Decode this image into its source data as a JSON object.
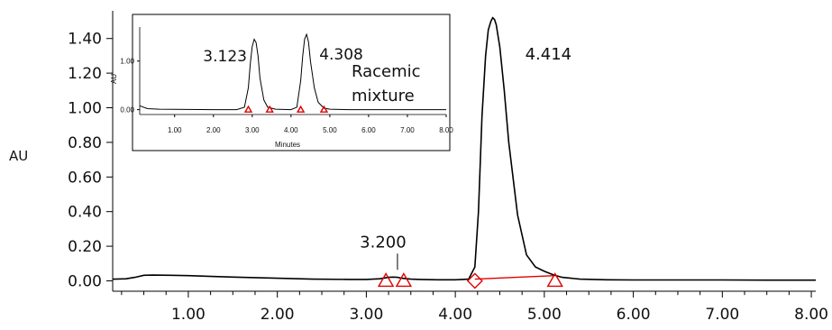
{
  "chart_data": [
    {
      "type": "line",
      "ylabel": "AU",
      "xlim": [
        0.15,
        8.05
      ],
      "ylim": [
        -0.06,
        1.56
      ],
      "xticks": [
        {
          "v": 1.0,
          "label": "1.00"
        },
        {
          "v": 2.0,
          "label": "2.00"
        },
        {
          "v": 3.0,
          "label": "3.00"
        },
        {
          "v": 4.0,
          "label": "4.00"
        },
        {
          "v": 5.0,
          "label": "5.00"
        },
        {
          "v": 6.0,
          "label": "6.00"
        },
        {
          "v": 7.0,
          "label": "7.00"
        },
        {
          "v": 8.0,
          "label": "8.00"
        }
      ],
      "yticks": [
        {
          "v": 0.0,
          "label": "0.00"
        },
        {
          "v": 0.2,
          "label": "0.20"
        },
        {
          "v": 0.4,
          "label": "0.40"
        },
        {
          "v": 0.6,
          "label": "0.60"
        },
        {
          "v": 0.8,
          "label": "0.80"
        },
        {
          "v": 1.0,
          "label": "1.00"
        },
        {
          "v": 1.2,
          "label": "1.20"
        },
        {
          "v": 1.4,
          "label": "1.40"
        }
      ],
      "series": [
        {
          "x": [
            0.15,
            0.3,
            0.4,
            0.5,
            0.6,
            0.8,
            1.0,
            1.3,
            1.6,
            2.0,
            2.4,
            2.8,
            3.0,
            3.15,
            3.25,
            3.3,
            3.35,
            3.4,
            3.5,
            3.6,
            3.8,
            4.0,
            4.15,
            4.22,
            4.26,
            4.3,
            4.34,
            4.37,
            4.4,
            4.42,
            4.44,
            4.46,
            4.5,
            4.55,
            4.6,
            4.7,
            4.8,
            4.9,
            5.0,
            5.1,
            5.2,
            5.4,
            5.7,
            6.0,
            6.5,
            7.0,
            7.5,
            8.05
          ],
          "y": [
            0.01,
            0.012,
            0.02,
            0.032,
            0.033,
            0.032,
            0.03,
            0.025,
            0.02,
            0.015,
            0.01,
            0.008,
            0.008,
            0.012,
            0.02,
            0.022,
            0.02,
            0.015,
            0.01,
            0.008,
            0.006,
            0.006,
            0.01,
            0.08,
            0.4,
            0.95,
            1.3,
            1.45,
            1.5,
            1.52,
            1.51,
            1.48,
            1.35,
            1.1,
            0.8,
            0.38,
            0.15,
            0.08,
            0.055,
            0.035,
            0.02,
            0.01,
            0.006,
            0.005,
            0.005,
            0.005,
            0.004,
            0.004
          ]
        }
      ],
      "peak_labels": [
        {
          "x": 3.35,
          "y": 0.022,
          "label": "3.200"
        },
        {
          "x": 4.42,
          "y": 1.52,
          "label": "4.414"
        }
      ],
      "baseline_markers": [
        {
          "x": 3.22,
          "y": 0.0,
          "shape": "triangle"
        },
        {
          "x": 3.42,
          "y": 0.0,
          "shape": "triangle"
        },
        {
          "x": 4.22,
          "y": 0.0,
          "shape": "diamond"
        },
        {
          "x": 5.12,
          "y": 0.0,
          "shape": "triangle"
        }
      ],
      "baseline_segments": [
        [
          4.22,
          0.01,
          5.12,
          0.03
        ]
      ]
    },
    {
      "type": "line",
      "inset": true,
      "xlabel": "Minutes",
      "ylabel": "AU",
      "xlim": [
        0.1,
        8.0
      ],
      "ylim": [
        -0.1,
        1.7
      ],
      "xticks": [
        {
          "v": 1.0,
          "label": "1.00"
        },
        {
          "v": 2.0,
          "label": "2.00"
        },
        {
          "v": 3.0,
          "label": "3.00"
        },
        {
          "v": 4.0,
          "label": "4.00"
        },
        {
          "v": 5.0,
          "label": "5.00"
        },
        {
          "v": 6.0,
          "label": "6.00"
        },
        {
          "v": 7.0,
          "label": "7.00"
        },
        {
          "v": 8.0,
          "label": "8.00"
        }
      ],
      "yticks": [
        {
          "v": 0.0,
          "label": "0.00"
        },
        {
          "v": 1.0,
          "label": "1.00"
        }
      ],
      "series": [
        {
          "x": [
            0.1,
            0.3,
            0.6,
            1.0,
            2.0,
            2.6,
            2.8,
            2.9,
            2.95,
            3.0,
            3.05,
            3.1,
            3.15,
            3.2,
            3.3,
            3.4,
            3.6,
            4.0,
            4.15,
            4.25,
            4.3,
            4.35,
            4.4,
            4.45,
            4.5,
            4.6,
            4.7,
            4.85,
            5.0,
            5.5,
            6.0,
            7.0,
            8.0
          ],
          "y": [
            0.08,
            0.02,
            0.01,
            0.005,
            0.0,
            0.0,
            0.05,
            0.45,
            0.95,
            1.3,
            1.45,
            1.38,
            1.1,
            0.65,
            0.2,
            0.05,
            0.01,
            0.0,
            0.05,
            0.6,
            1.1,
            1.45,
            1.55,
            1.4,
            1.0,
            0.45,
            0.15,
            0.03,
            0.01,
            0.0,
            0.0,
            0.0,
            0.0
          ]
        }
      ],
      "peak_labels": [
        {
          "x": 3.05,
          "label": "3.123"
        },
        {
          "x": 4.45,
          "label": "4.308"
        }
      ],
      "annotation": [
        "Racemic",
        "mixture"
      ],
      "baseline_markers": [
        {
          "x": 2.9,
          "y": 0.0,
          "shape": "triangle"
        },
        {
          "x": 3.45,
          "y": 0.0,
          "shape": "triangle"
        },
        {
          "x": 4.25,
          "y": 0.0,
          "shape": "triangle"
        },
        {
          "x": 4.85,
          "y": 0.0,
          "shape": "triangle"
        }
      ]
    }
  ]
}
